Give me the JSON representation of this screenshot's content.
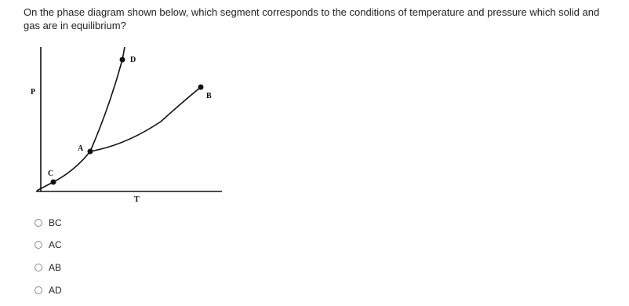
{
  "question": "On the phase diagram shown below, which segment corresponds to the conditions of temperature and pressure which solid and gas are in equilibrium?",
  "diagram": {
    "labels": {
      "p": "P",
      "t": "T",
      "a": "A",
      "b": "B",
      "c": "C",
      "d": "D"
    }
  },
  "options": [
    "BC",
    "AC",
    "AB",
    "AD"
  ]
}
